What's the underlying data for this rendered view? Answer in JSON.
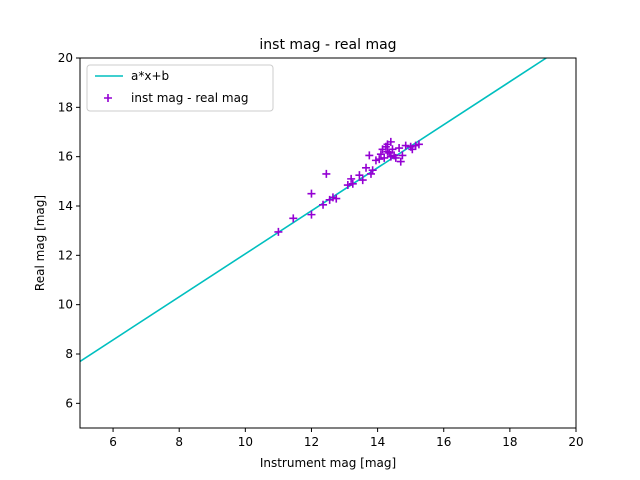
{
  "chart_data": {
    "type": "scatter",
    "title": "inst mag - real mag",
    "xlabel": "Instrument mag [mag]",
    "ylabel": "Real mag [mag]",
    "xlim": [
      5,
      20
    ],
    "ylim": [
      5,
      20
    ],
    "xticks": [
      6,
      8,
      10,
      12,
      14,
      16,
      18,
      20
    ],
    "yticks": [
      6,
      8,
      10,
      12,
      14,
      16,
      18,
      20
    ],
    "grid": false,
    "legend_position": "top-left",
    "fit_line": {
      "name": "a*x+b",
      "color": "#00bfbf",
      "x": [
        5,
        19.1
      ],
      "y": [
        7.7,
        20.0
      ]
    },
    "series": [
      {
        "name": "inst mag - real mag",
        "marker": "plus",
        "color": "#9400d3",
        "points": [
          [
            11.0,
            12.95
          ],
          [
            11.45,
            13.5
          ],
          [
            12.0,
            13.65
          ],
          [
            12.0,
            14.5
          ],
          [
            12.35,
            14.05
          ],
          [
            12.45,
            15.3
          ],
          [
            12.55,
            14.25
          ],
          [
            12.65,
            14.35
          ],
          [
            12.75,
            14.3
          ],
          [
            13.1,
            14.85
          ],
          [
            13.2,
            15.1
          ],
          [
            13.25,
            14.9
          ],
          [
            13.45,
            15.25
          ],
          [
            13.55,
            15.05
          ],
          [
            13.65,
            15.55
          ],
          [
            13.8,
            15.3
          ],
          [
            13.75,
            16.05
          ],
          [
            13.85,
            15.45
          ],
          [
            13.95,
            15.85
          ],
          [
            14.05,
            15.9
          ],
          [
            14.1,
            16.1
          ],
          [
            14.15,
            16.3
          ],
          [
            14.2,
            15.95
          ],
          [
            14.25,
            16.4
          ],
          [
            14.3,
            16.2
          ],
          [
            14.35,
            16.15
          ],
          [
            14.3,
            16.5
          ],
          [
            14.4,
            16.0
          ],
          [
            14.4,
            16.6
          ],
          [
            14.45,
            16.3
          ],
          [
            14.5,
            16.05
          ],
          [
            14.55,
            15.95
          ],
          [
            14.65,
            16.35
          ],
          [
            14.7,
            15.8
          ],
          [
            14.75,
            16.05
          ],
          [
            14.85,
            16.45
          ],
          [
            15.0,
            16.4
          ],
          [
            15.05,
            16.3
          ],
          [
            15.15,
            16.45
          ],
          [
            15.25,
            16.5
          ]
        ]
      }
    ]
  }
}
